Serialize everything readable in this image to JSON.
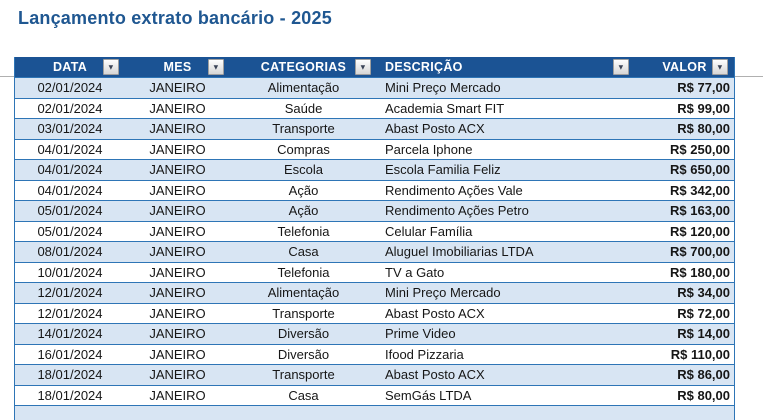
{
  "page": {
    "title": "Lançamento extrato bancário - 2025"
  },
  "table": {
    "columns": [
      "DATA",
      "MES",
      "CATEGORIAS",
      "DESCRIÇÃO",
      "VALOR"
    ],
    "rows": [
      {
        "date": "02/01/2024",
        "month": "JANEIRO",
        "category": "Alimentação",
        "description": "Mini Preço Mercado",
        "value": "R$ 77,00"
      },
      {
        "date": "02/01/2024",
        "month": "JANEIRO",
        "category": "Saúde",
        "description": "Academia Smart FIT",
        "value": "R$ 99,00"
      },
      {
        "date": "03/01/2024",
        "month": "JANEIRO",
        "category": "Transporte",
        "description": "Abast Posto ACX",
        "value": "R$ 80,00"
      },
      {
        "date": "04/01/2024",
        "month": "JANEIRO",
        "category": "Compras",
        "description": "Parcela Iphone",
        "value": "R$ 250,00"
      },
      {
        "date": "04/01/2024",
        "month": "JANEIRO",
        "category": "Escola",
        "description": "Escola Familia Feliz",
        "value": "R$ 650,00"
      },
      {
        "date": "04/01/2024",
        "month": "JANEIRO",
        "category": "Ação",
        "description": "Rendimento Ações Vale",
        "value": "R$ 342,00"
      },
      {
        "date": "05/01/2024",
        "month": "JANEIRO",
        "category": "Ação",
        "description": "Rendimento Ações Petro",
        "value": "R$ 163,00"
      },
      {
        "date": "05/01/2024",
        "month": "JANEIRO",
        "category": "Telefonia",
        "description": "Celular Família",
        "value": "R$ 120,00"
      },
      {
        "date": "08/01/2024",
        "month": "JANEIRO",
        "category": "Casa",
        "description": "Aluguel Imobiliarias LTDA",
        "value": "R$ 700,00"
      },
      {
        "date": "10/01/2024",
        "month": "JANEIRO",
        "category": "Telefonia",
        "description": "TV a Gato",
        "value": "R$ 180,00"
      },
      {
        "date": "12/01/2024",
        "month": "JANEIRO",
        "category": "Alimentação",
        "description": "Mini Preço Mercado",
        "value": "R$ 34,00"
      },
      {
        "date": "12/01/2024",
        "month": "JANEIRO",
        "category": "Transporte",
        "description": "Abast Posto ACX",
        "value": "R$ 72,00"
      },
      {
        "date": "14/01/2024",
        "month": "JANEIRO",
        "category": "Diversão",
        "description": "Prime Video",
        "value": "R$ 14,00"
      },
      {
        "date": "16/01/2024",
        "month": "JANEIRO",
        "category": "Diversão",
        "description": "Ifood Pizzaria",
        "value": "R$ 110,00"
      },
      {
        "date": "18/01/2024",
        "month": "JANEIRO",
        "category": "Transporte",
        "description": "Abast Posto ACX",
        "value": "R$ 86,00"
      },
      {
        "date": "18/01/2024",
        "month": "JANEIRO",
        "category": "Casa",
        "description": "SemGás LTDA",
        "value": "R$ 80,00"
      }
    ]
  },
  "icons": {
    "filter": "▾"
  },
  "colors": {
    "title_color": "#1f5791",
    "header_bg": "#1b5394",
    "band_row": "#d8e5f3",
    "row_border": "#2e75b6",
    "gridline": "#b0b0b0"
  }
}
